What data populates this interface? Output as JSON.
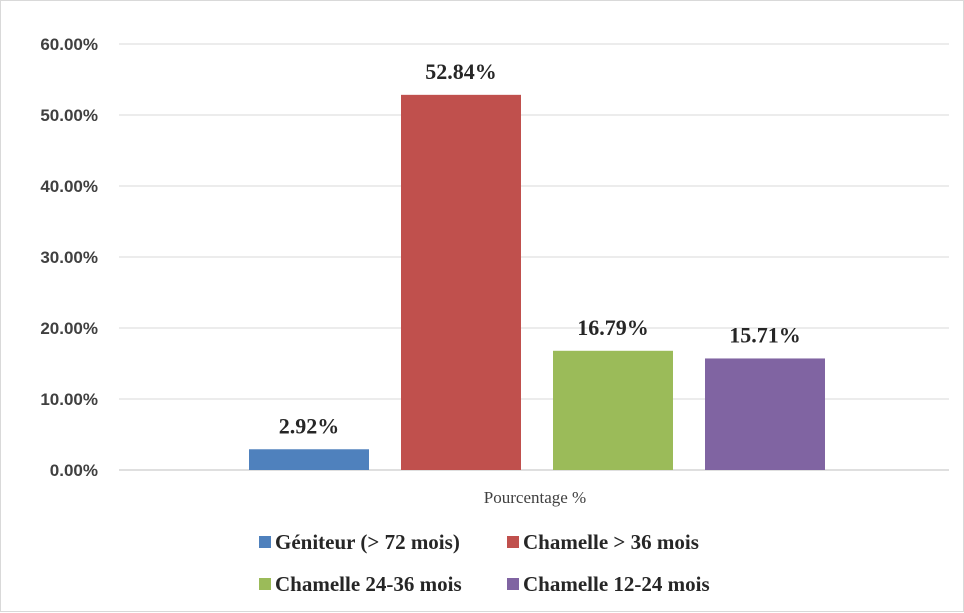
{
  "chart_data": {
    "type": "bar",
    "categories": [
      "Pourcentage %"
    ],
    "series": [
      {
        "name": "Géniteur (> 72 mois)",
        "values": [
          2.92
        ],
        "label": "2.92%",
        "color": "#4f81bd"
      },
      {
        "name": "Chamelle > 36 mois",
        "values": [
          52.84
        ],
        "label": "52.84%",
        "color": "#c0504d"
      },
      {
        "name": "Chamelle 24-36 mois",
        "values": [
          16.79
        ],
        "label": "16.79%",
        "color": "#9bbb59"
      },
      {
        "name": "Chamelle 12-24 mois",
        "values": [
          15.71
        ],
        "label": "15.71%",
        "color": "#8064a2"
      }
    ],
    "yticks": [
      "0.00%",
      "10.00%",
      "20.00%",
      "30.00%",
      "40.00%",
      "50.00%",
      "60.00%"
    ],
    "ylim": [
      0,
      60
    ],
    "grid": true,
    "legend_position": "bottom"
  }
}
